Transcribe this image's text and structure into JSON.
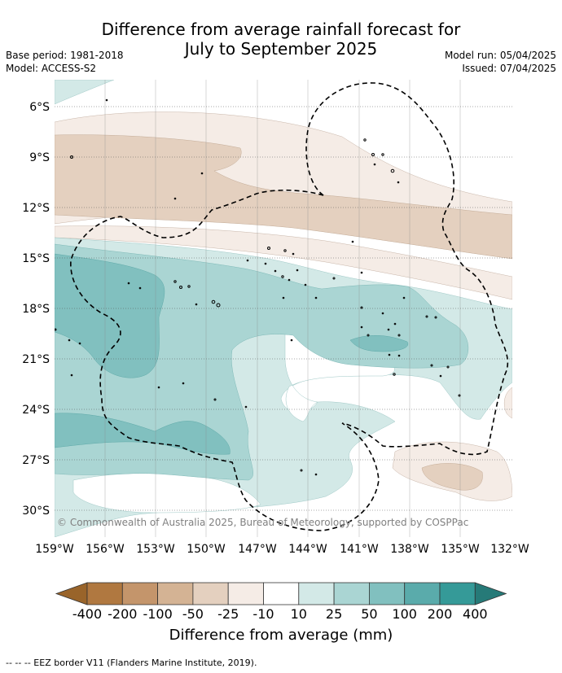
{
  "title": {
    "line1": "Difference from average rainfall forecast for",
    "line2": "July to September 2025"
  },
  "meta": {
    "base_period": "Base period: 1981-2018",
    "model": "Model: ACCESS-S2",
    "model_run": "Model run: 05/04/2025",
    "issued": "Issued: 07/04/2025"
  },
  "map": {
    "copyright": "© Commonwealth of Australia 2025, Bureau of Meteorology, supported by COSPPac",
    "lat_labels": [
      "6°S",
      "9°S",
      "12°S",
      "15°S",
      "18°S",
      "21°S",
      "24°S",
      "27°S",
      "30°S"
    ],
    "lon_labels": [
      "159°W",
      "156°W",
      "153°W",
      "150°W",
      "147°W",
      "144°W",
      "141°W",
      "138°W",
      "135°W",
      "132°W"
    ]
  },
  "colorbar": {
    "title": "Difference from average (mm)",
    "labels": [
      "-400",
      "-200",
      "-100",
      "-50",
      "-25",
      "-10",
      "10",
      "25",
      "50",
      "100",
      "200",
      "400"
    ],
    "colors": [
      "#b07840",
      "#c4956b",
      "#d4b394",
      "#e4d0bf",
      "#f5ece6",
      "#ffffff",
      "#d3e9e7",
      "#aad5d3",
      "#81c0bf",
      "#5aabab",
      "#359a98"
    ],
    "extend_low_color": "#99642a",
    "extend_high_color": "#267a78"
  },
  "footer": {
    "legend_text": "-- -- -- EEZ border V11 (Flanders Marine Institute, 2019)."
  }
}
